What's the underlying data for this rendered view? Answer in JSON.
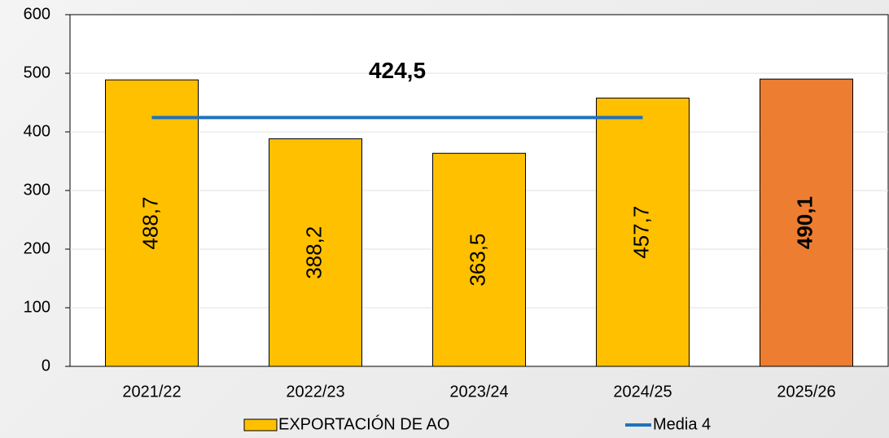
{
  "chart_data": {
    "type": "bar",
    "categories": [
      "2021/22",
      "2022/23",
      "2023/24",
      "2024/25",
      "2025/26"
    ],
    "series": [
      {
        "name": "EXPORTACIÓN DE AO",
        "type": "bar",
        "color": "#ffc000",
        "colors": [
          "#ffc000",
          "#ffc000",
          "#ffc000",
          "#ffc000",
          "#ed7d31"
        ],
        "values": [
          488.7,
          388.2,
          363.5,
          457.7,
          490.1
        ],
        "value_labels": [
          "488,7",
          "388,2",
          "363,5",
          "457,7",
          "490,1"
        ],
        "bold_labels": [
          false,
          false,
          false,
          false,
          true
        ]
      },
      {
        "name": "Media 4",
        "type": "line",
        "color": "#1f72bd",
        "values": [
          424.5,
          424.5,
          424.5,
          424.5,
          null
        ]
      }
    ],
    "annotation": "424,5",
    "ylim": [
      0,
      600
    ],
    "yticks": [
      0,
      100,
      200,
      300,
      400,
      500,
      600
    ],
    "grid": true,
    "legend": "bottom"
  }
}
